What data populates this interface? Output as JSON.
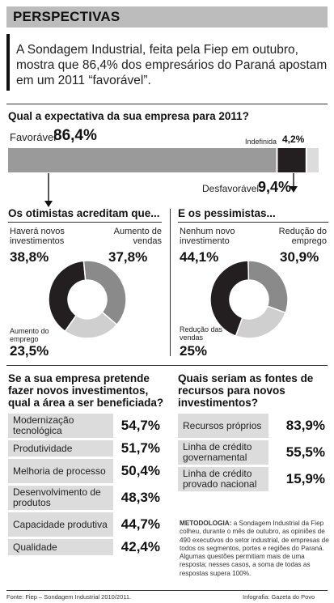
{
  "header": {
    "title": "PERSPECTIVAS"
  },
  "intro": "A Sondagem Industrial, feita pela Fiep em outubro, mostra que 86,4% dos empresários do Paraná apostam em um 2011 “favorável”.",
  "expectation": {
    "question": "Qual a expectativa da sua empresa para 2011?",
    "favoravel_label": "Favorável",
    "favoravel_value": "86,4%",
    "indefinida_label": "Indefinida",
    "indefinida_value": "4,2%",
    "desfavoravel_label": "Desfavorável",
    "desfavoravel_value": "9,4%"
  },
  "optimists": {
    "title": "Os otimistas acreditam que...",
    "a_label": "Haverá novos investimentos",
    "a_value": "38,8%",
    "b_label": "Aumento de vendas",
    "b_value": "37,8%",
    "c_label": "Aumento do emprego",
    "c_value": "23,5%"
  },
  "pessimists": {
    "title": "E os pessimistas...",
    "a_label": "Nenhum novo investimento",
    "a_value": "44,1%",
    "b_label": "Redução do emprego",
    "b_value": "30,9%",
    "c_label": "Redução das vendas",
    "c_value": "25%"
  },
  "areas": {
    "title": "Se a sua empresa pretende fazer novos investimentos, qual a área a ser beneficiada?",
    "rows": [
      {
        "label": "Modernização tecnológica",
        "value": "54,7%"
      },
      {
        "label": "Produtividade",
        "value": "51,7%"
      },
      {
        "label": "Melhoria de processo",
        "value": "50,4%"
      },
      {
        "label": "Desenvolvimento de produtos",
        "value": "48,3%"
      },
      {
        "label": "Capacidade produtiva",
        "value": "44,7%"
      },
      {
        "label": "Qualidade",
        "value": "42,4%"
      }
    ]
  },
  "sources": {
    "title": "Quais seriam as fontes de recursos para novos investimentos?",
    "rows": [
      {
        "label": "Recursos próprios",
        "value": "83,9%"
      },
      {
        "label": "Linha de crédito governamental",
        "value": "55,5%"
      },
      {
        "label": "Linha de crédito provado nacional",
        "value": "15,9%"
      }
    ]
  },
  "methodology": {
    "label": "METODOLOGIA:",
    "text": " a Sondagem Industrial da Fiep colheu, durante o mês de outubro, as opiniões de 490 executivos do setor industrial, de empresas de todos os segmentos, portes e regiões do Paraná. Algumas questões permitiam mais de uma resposta; nesses casos, a soma de todas as respostas supera 100%."
  },
  "footer": {
    "source": "Fonte: Fiep – Sondagem Industrial 2010/2011.",
    "credit": "Infografia: Gazeta do Povo"
  },
  "colors": {
    "dark": "#231f20",
    "mid": "#8a8a8a",
    "light": "#cfcfcf",
    "lighter": "#dcdcdc",
    "bar": "#9a9a9a"
  },
  "chart_data": [
    {
      "type": "bar",
      "title": "Qual a expectativa da sua empresa para 2011?",
      "categories": [
        "Favorável",
        "Desfavorável",
        "Indefinida"
      ],
      "values": [
        86.4,
        9.4,
        4.2
      ]
    },
    {
      "type": "pie",
      "title": "Os otimistas acreditam que...",
      "categories": [
        "Haverá novos investimentos",
        "Aumento de vendas",
        "Aumento do emprego"
      ],
      "values": [
        38.8,
        37.8,
        23.5
      ]
    },
    {
      "type": "pie",
      "title": "E os pessimistas...",
      "categories": [
        "Nenhum novo investimento",
        "Redução do emprego",
        "Redução das vendas"
      ],
      "values": [
        44.1,
        30.9,
        25
      ]
    },
    {
      "type": "table",
      "title": "Se a sua empresa pretende fazer novos investimentos, qual a área a ser beneficiada?",
      "categories": [
        "Modernização tecnológica",
        "Produtividade",
        "Melhoria de processo",
        "Desenvolvimento de produtos",
        "Capacidade produtiva",
        "Qualidade"
      ],
      "values": [
        54.7,
        51.7,
        50.4,
        48.3,
        44.7,
        42.4
      ]
    },
    {
      "type": "table",
      "title": "Quais seriam as fontes de recursos para novos investimentos?",
      "categories": [
        "Recursos próprios",
        "Linha de crédito governamental",
        "Linha de crédito provado nacional"
      ],
      "values": [
        83.9,
        55.5,
        15.9
      ]
    }
  ]
}
